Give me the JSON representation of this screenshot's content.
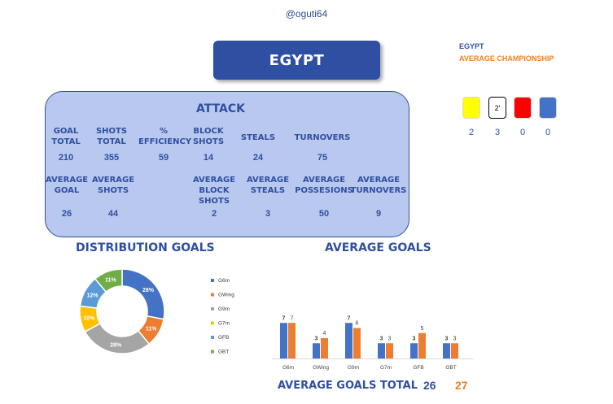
{
  "header": {
    "handle": "@oguti64",
    "team": "EGYPT"
  },
  "legend": {
    "team": "EGYPT",
    "average": "AVERAGE CHAMPIONSHIP"
  },
  "cards": [
    {
      "name": "yellow-card",
      "color": "#ffff00",
      "border": "#d8d8d8",
      "value": "2",
      "label": ""
    },
    {
      "name": "suspension-card",
      "color": "#ffffff",
      "border": "#000000",
      "value": "3",
      "label": "2'"
    },
    {
      "name": "red-card",
      "color": "#ff0000",
      "border": "#d8d8d8",
      "value": "0",
      "label": ""
    },
    {
      "name": "blue-card",
      "color": "#4472c4",
      "border": "#d8d8d8",
      "value": "0",
      "label": ""
    }
  ],
  "attack": {
    "title": "ATTACK",
    "row1_labels": [
      "GOAL\nTOTAL",
      "SHOTS\nTOTAL",
      "%\nEFFICIENCY",
      "BLOCK\nSHOTS",
      "STEALS",
      "TURNOVERS"
    ],
    "row1_values": [
      "210",
      "355",
      "59",
      "14",
      "24",
      "75"
    ],
    "row2_labels": [
      "AVERAGE\nGOAL",
      "AVERAGE\nSHOTS",
      "AVERAGE\nBLOCK SHOTS",
      "AVERAGE\nSTEALS",
      "AVERAGE\nPOSSESIONS",
      "AVERAGE\nTURNOVERS"
    ],
    "row2_values": [
      "26",
      "44",
      "2",
      "3",
      "50",
      "9"
    ]
  },
  "sections": {
    "distribution": "DISTRIBUTION GOALS",
    "average": "AVERAGE GOALS"
  },
  "totals": {
    "label": "AVERAGE GOALS TOTAL",
    "team": "26",
    "average": "27"
  },
  "colors": {
    "team": "#4472c4",
    "average": "#ed7d31"
  },
  "chart_data": [
    {
      "type": "pie",
      "title": "",
      "categories": [
        "G6m",
        "GWing",
        "G9m",
        "G7m",
        "GFB",
        "GBT"
      ],
      "values": [
        28,
        11,
        28,
        10,
        12,
        11
      ],
      "labels": [
        "28%",
        "11%",
        "28%",
        "10%",
        "12%",
        "11%"
      ],
      "colors": [
        "#4472c4",
        "#ed7d31",
        "#a5a5a5",
        "#ffc000",
        "#5b9bd5",
        "#70ad47"
      ],
      "donut": true,
      "legend": "right"
    },
    {
      "type": "bar",
      "title": "",
      "categories": [
        "G6m",
        "GWing",
        "G9m",
        "G7m",
        "GFB",
        "GBT"
      ],
      "series": [
        {
          "values": [
            7,
            3,
            7,
            3,
            3,
            3
          ],
          "color": "#4472c4"
        },
        {
          "values": [
            7,
            4,
            6,
            3,
            5,
            3
          ],
          "color": "#ed7d31"
        }
      ],
      "ylim": [
        0,
        8
      ],
      "grid": false
    }
  ]
}
